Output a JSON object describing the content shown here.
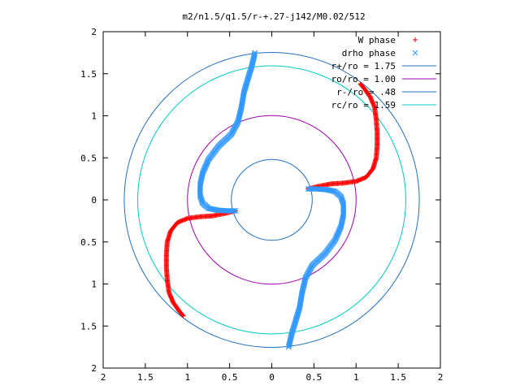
{
  "chart_data": {
    "type": "scatter",
    "title": "m2/n1.5/q1.5/r-+.27-j142/M0.02/512",
    "xlabel": "",
    "ylabel": "",
    "xlim": [
      -2,
      2
    ],
    "ylim": [
      -2,
      2
    ],
    "xticks": [
      -2,
      -1.5,
      -1,
      -0.5,
      0,
      0.5,
      1,
      1.5,
      2
    ],
    "yticks": [
      -2,
      -1.5,
      -1,
      -0.5,
      0,
      0.5,
      1,
      1.5,
      2
    ],
    "xtick_labels": [
      "2",
      "1.5",
      "1",
      "0.5",
      "0",
      "0.5",
      "1",
      "1.5",
      "2"
    ],
    "ytick_labels": [
      "2",
      "1.5",
      "1",
      "0.5",
      "0",
      "0.5",
      "1",
      "1.5",
      "2"
    ],
    "grid": false,
    "legend_position": "top-right",
    "legend": [
      {
        "label": "W phase",
        "type": "points",
        "marker": "+",
        "color": "#ff0000"
      },
      {
        "label": "drho phase",
        "type": "points",
        "marker": "x",
        "color": "#3399ff"
      },
      {
        "label": "r+/ro = 1.75",
        "type": "circle",
        "radius": 1.75,
        "color": "#1f6fbf"
      },
      {
        "label": "ro/ro = 1.00",
        "type": "circle",
        "radius": 1.0,
        "color": "#a000b0"
      },
      {
        "label": "r-/ro = .48",
        "type": "circle",
        "radius": 0.48,
        "color": "#1f6fbf"
      },
      {
        "label": "rc/ro = 1.59",
        "type": "circle",
        "radius": 1.59,
        "color": "#00c8c8"
      }
    ],
    "series": [
      {
        "name": "W phase",
        "marker": "+",
        "color": "#ff0000",
        "arms": [
          [
            [
              0.43,
              0.13
            ],
            [
              0.55,
              0.16
            ],
            [
              0.7,
              0.19
            ],
            [
              0.85,
              0.2
            ],
            [
              1.0,
              0.22
            ],
            [
              1.12,
              0.27
            ],
            [
              1.2,
              0.37
            ],
            [
              1.24,
              0.5
            ],
            [
              1.25,
              0.65
            ],
            [
              1.25,
              0.8
            ],
            [
              1.24,
              0.95
            ],
            [
              1.22,
              1.1
            ],
            [
              1.17,
              1.22
            ],
            [
              1.1,
              1.32
            ],
            [
              1.05,
              1.38
            ]
          ],
          [
            [
              -0.43,
              -0.13
            ],
            [
              -0.55,
              -0.16
            ],
            [
              -0.7,
              -0.19
            ],
            [
              -0.85,
              -0.2
            ],
            [
              -1.0,
              -0.22
            ],
            [
              -1.12,
              -0.27
            ],
            [
              -1.2,
              -0.37
            ],
            [
              -1.24,
              -0.5
            ],
            [
              -1.25,
              -0.65
            ],
            [
              -1.25,
              -0.8
            ],
            [
              -1.24,
              -0.95
            ],
            [
              -1.22,
              -1.1
            ],
            [
              -1.17,
              -1.22
            ],
            [
              -1.1,
              -1.32
            ],
            [
              -1.05,
              -1.38
            ]
          ]
        ]
      },
      {
        "name": "drho phase",
        "marker": "x",
        "color": "#3399ff",
        "arms": [
          [
            [
              0.43,
              0.13
            ],
            [
              0.55,
              0.13
            ],
            [
              0.66,
              0.12
            ],
            [
              0.75,
              0.1
            ],
            [
              0.82,
              0.04
            ],
            [
              0.85,
              -0.05
            ],
            [
              0.85,
              -0.18
            ],
            [
              0.82,
              -0.32
            ],
            [
              0.75,
              -0.48
            ],
            [
              0.63,
              -0.64
            ],
            [
              0.48,
              -0.78
            ],
            [
              0.4,
              -0.93
            ],
            [
              0.36,
              -1.1
            ],
            [
              0.33,
              -1.28
            ],
            [
              0.28,
              -1.45
            ],
            [
              0.24,
              -1.58
            ],
            [
              0.2,
              -1.75
            ]
          ],
          [
            [
              -0.43,
              -0.13
            ],
            [
              -0.55,
              -0.13
            ],
            [
              -0.66,
              -0.12
            ],
            [
              -0.75,
              -0.1
            ],
            [
              -0.82,
              -0.04
            ],
            [
              -0.85,
              0.05
            ],
            [
              -0.85,
              0.18
            ],
            [
              -0.82,
              0.32
            ],
            [
              -0.75,
              0.48
            ],
            [
              -0.63,
              0.64
            ],
            [
              -0.48,
              0.78
            ],
            [
              -0.4,
              0.93
            ],
            [
              -0.36,
              1.1
            ],
            [
              -0.33,
              1.28
            ],
            [
              -0.28,
              1.45
            ],
            [
              -0.24,
              1.58
            ],
            [
              -0.2,
              1.75
            ]
          ]
        ]
      }
    ]
  }
}
